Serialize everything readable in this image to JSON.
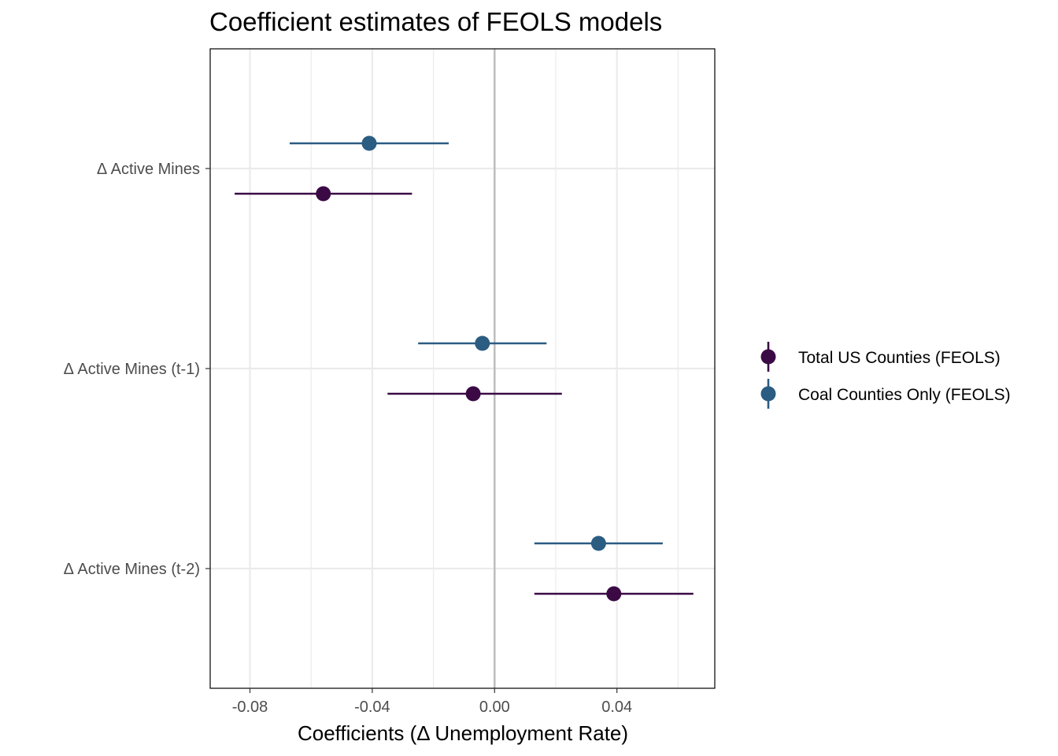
{
  "colors": {
    "total": "#3b0a45",
    "coal": "#2b5c82",
    "grid": "#ebebeb",
    "zero_line": "#bdbdbd",
    "panel_border": "#000000",
    "tick_text": "#4d4d4d"
  },
  "chart_data": {
    "type": "scatter",
    "subtype": "coefficient-plot-with-error-bars",
    "title": "Coefficient estimates of FEOLS models",
    "xlabel": "Coefficients (Δ Unemployment Rate)",
    "ylabel": "",
    "xlim": [
      -0.093,
      0.072
    ],
    "x_ticks": [
      -0.08,
      -0.04,
      0.0,
      0.04
    ],
    "x_tick_labels": [
      "-0.08",
      "-0.04",
      "0.00",
      "0.04"
    ],
    "reference_line_x": 0,
    "grid": true,
    "legend_position": "right",
    "categories": [
      "Δ Active Mines",
      "Δ Active Mines (t-1)",
      "Δ Active Mines (t-2)"
    ],
    "series": [
      {
        "name": "Total US Counties (FEOLS)",
        "color": "#3b0a45",
        "estimates": [
          -0.056,
          -0.007,
          0.039
        ],
        "ci_low": [
          -0.085,
          -0.035,
          0.013
        ],
        "ci_high": [
          -0.027,
          0.022,
          0.065
        ]
      },
      {
        "name": "Coal Counties Only (FEOLS)",
        "color": "#2b5c82",
        "estimates": [
          -0.041,
          -0.004,
          0.034
        ],
        "ci_low": [
          -0.067,
          -0.025,
          0.013
        ],
        "ci_high": [
          -0.015,
          0.017,
          0.055
        ]
      }
    ]
  }
}
